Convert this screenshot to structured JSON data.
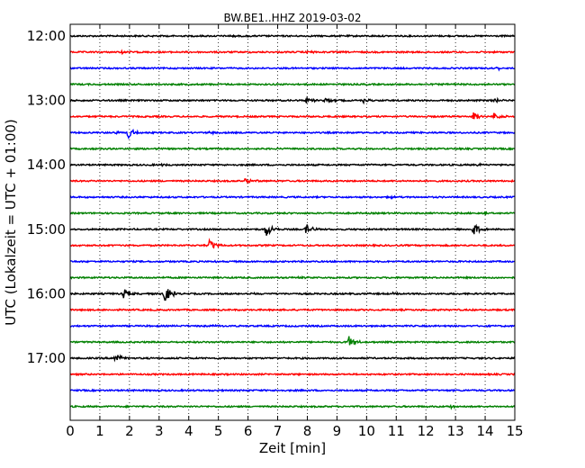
{
  "chart_data": {
    "type": "line",
    "title": "BW.BE1..HHZ 2019-03-02",
    "xlabel": "Zeit  [min]",
    "ylabel": "UTC (Lokalzeit = UTC + 01:00)",
    "xlim": [
      0,
      15
    ],
    "x_ticks": [
      0,
      1,
      2,
      3,
      4,
      5,
      6,
      7,
      8,
      9,
      10,
      11,
      12,
      13,
      14,
      15
    ],
    "y_ticks": [
      "12:00",
      "13:00",
      "14:00",
      "15:00",
      "16:00",
      "17:00"
    ],
    "grid": true,
    "row_interval_minutes": 15,
    "color_cycle": [
      "#000000",
      "#ff0000",
      "#0000ff",
      "#008000"
    ],
    "rows": [
      {
        "start": "12:00",
        "events": [
          {
            "t": 2.8,
            "amp": 0.1
          },
          {
            "t": 5.4,
            "amp": 0.1
          }
        ]
      },
      {
        "start": "12:15",
        "events": [
          {
            "t": 1.75,
            "amp": 0.2
          },
          {
            "t": 8.0,
            "amp": 0.25
          }
        ]
      },
      {
        "start": "12:30",
        "events": [
          {
            "t": 14.4,
            "amp": 0.3
          }
        ]
      },
      {
        "start": "12:45",
        "events": []
      },
      {
        "start": "13:00",
        "events": [
          {
            "t": 7.95,
            "amp": 0.5
          },
          {
            "t": 8.6,
            "amp": 0.45
          },
          {
            "t": 9.9,
            "amp": 0.3
          },
          {
            "t": 14.3,
            "amp": 0.3
          }
        ]
      },
      {
        "start": "13:15",
        "events": [
          {
            "t": 13.6,
            "amp": 0.65
          },
          {
            "t": 14.3,
            "amp": 0.55
          }
        ]
      },
      {
        "start": "13:30",
        "events": [
          {
            "t": 1.45,
            "amp": 0.3
          },
          {
            "t": 1.95,
            "amp": 1.0
          },
          {
            "t": 4.7,
            "amp": 0.2
          }
        ]
      },
      {
        "start": "13:45",
        "events": []
      },
      {
        "start": "14:00",
        "events": [
          {
            "t": 3.05,
            "amp": 0.15
          },
          {
            "t": 9.9,
            "amp": 0.15
          },
          {
            "t": 13.75,
            "amp": 0.15
          }
        ]
      },
      {
        "start": "14:15",
        "events": [
          {
            "t": 5.9,
            "amp": 0.5
          }
        ]
      },
      {
        "start": "14:30",
        "events": [
          {
            "t": 10.8,
            "amp": 0.15
          }
        ]
      },
      {
        "start": "14:45",
        "events": [
          {
            "t": 14.0,
            "amp": 0.4
          }
        ]
      },
      {
        "start": "15:00",
        "events": [
          {
            "t": 6.6,
            "amp": 1.3
          },
          {
            "t": 7.95,
            "amp": 0.8
          },
          {
            "t": 13.6,
            "amp": 0.9
          }
        ]
      },
      {
        "start": "15:15",
        "events": [
          {
            "t": 4.7,
            "amp": 0.9
          },
          {
            "t": 1.3,
            "amp": 0.1
          }
        ]
      },
      {
        "start": "15:30",
        "events": [
          {
            "t": 4.9,
            "amp": 0.15
          }
        ]
      },
      {
        "start": "15:45",
        "events": [
          {
            "t": 7.7,
            "amp": 0.15
          }
        ]
      },
      {
        "start": "16:00",
        "events": [
          {
            "t": 1.8,
            "amp": 0.7
          },
          {
            "t": 3.15,
            "amp": 1.7
          },
          {
            "t": 6.1,
            "amp": 0.1
          },
          {
            "t": 10.9,
            "amp": 0.15
          }
        ]
      },
      {
        "start": "16:15",
        "events": []
      },
      {
        "start": "16:30",
        "events": [
          {
            "t": 4.85,
            "amp": 0.15
          }
        ]
      },
      {
        "start": "16:45",
        "events": [
          {
            "t": 9.4,
            "amp": 0.9
          }
        ]
      },
      {
        "start": "17:00",
        "events": [
          {
            "t": 1.5,
            "amp": 0.9
          }
        ]
      },
      {
        "start": "17:15",
        "events": []
      },
      {
        "start": "17:30",
        "events": []
      },
      {
        "start": "17:45",
        "events": [
          {
            "t": 12.85,
            "amp": 0.2
          }
        ]
      }
    ]
  }
}
